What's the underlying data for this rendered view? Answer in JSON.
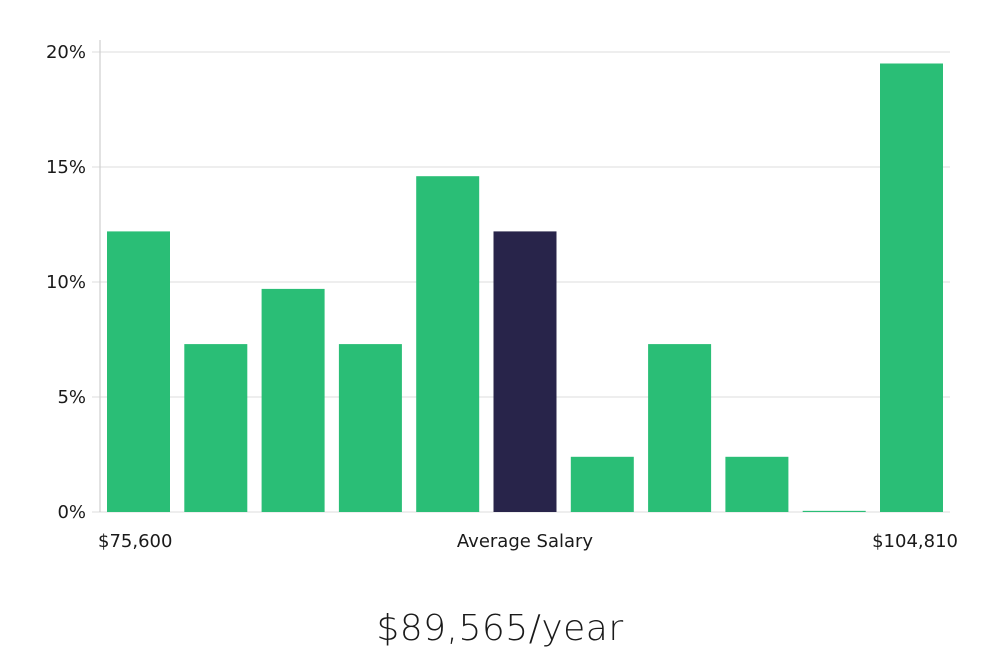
{
  "chart_data": {
    "type": "bar",
    "x_range_labels": {
      "min": "$75,600",
      "middle": "Average Salary",
      "max": "$104,810"
    },
    "values": [
      12.2,
      7.3,
      9.7,
      7.3,
      14.6,
      12.2,
      2.4,
      7.3,
      2.4,
      0.05,
      19.5
    ],
    "highlight_index": 5,
    "ylim": [
      0,
      20
    ],
    "yticks": [
      0,
      5,
      10,
      15,
      20
    ],
    "ytick_labels": [
      "0%",
      "5%",
      "10%",
      "15%",
      "20%"
    ],
    "grid": true,
    "colors": {
      "bar": "#2ABE76",
      "highlight": "#28244A",
      "grid": "#E3E3E3",
      "axis": "#CFCFCF"
    }
  },
  "headline": "$89,565/year"
}
